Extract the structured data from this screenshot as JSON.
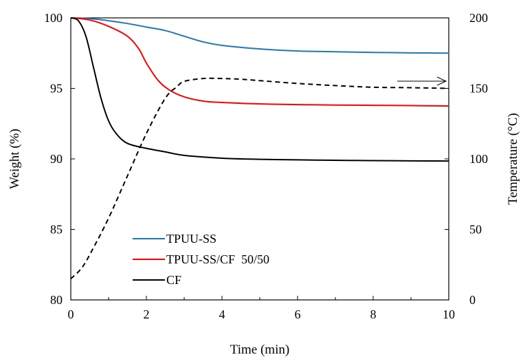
{
  "chart_data": {
    "type": "line",
    "title": "",
    "xlabel": "Time (min)",
    "ylabel": "Weight (%)",
    "y2label": "Temperature (°C)",
    "xlim": [
      0,
      10
    ],
    "ylim": [
      80,
      100
    ],
    "y2lim": [
      0,
      200
    ],
    "xticks": [
      "0",
      "2",
      "4",
      "6",
      "8",
      "10"
    ],
    "yticks": [
      "80",
      "85",
      "90",
      "95",
      "100"
    ],
    "y2ticks": [
      "0",
      "50",
      "100",
      "150",
      "200"
    ],
    "grid": false,
    "legend_position": "bottom-left",
    "series": [
      {
        "name": "TPUU-SS",
        "axis": "left",
        "color": "#1f77b4",
        "style": "solid",
        "x": [
          0,
          0.5,
          1,
          1.5,
          2,
          2.5,
          3,
          3.5,
          4,
          5,
          6,
          7,
          8,
          9,
          10
        ],
        "y": [
          100,
          99.95,
          99.8,
          99.6,
          99.35,
          99.1,
          98.7,
          98.3,
          98.05,
          97.8,
          97.65,
          97.6,
          97.55,
          97.52,
          97.5
        ]
      },
      {
        "name": "TPUU-SS/CF  50/50",
        "axis": "left",
        "color": "#ff0000",
        "style": "solid",
        "x": [
          0,
          0.5,
          1,
          1.5,
          1.8,
          2,
          2.3,
          2.6,
          3,
          3.5,
          4,
          5,
          6,
          7,
          8,
          9,
          10
        ],
        "y": [
          100,
          99.85,
          99.4,
          98.7,
          97.8,
          96.8,
          95.6,
          94.9,
          94.4,
          94.1,
          94.0,
          93.9,
          93.85,
          93.82,
          93.8,
          93.78,
          93.75
        ]
      },
      {
        "name": "CF",
        "axis": "left",
        "color": "#000000",
        "style": "solid",
        "x": [
          0,
          0.2,
          0.4,
          0.6,
          0.8,
          1,
          1.2,
          1.5,
          2,
          2.5,
          3,
          4,
          5,
          6,
          7,
          8,
          9,
          10
        ],
        "y": [
          100,
          99.8,
          98.7,
          96.5,
          94.3,
          92.7,
          91.8,
          91.1,
          90.75,
          90.5,
          90.25,
          90.05,
          89.97,
          89.93,
          89.9,
          89.88,
          89.86,
          89.85
        ]
      },
      {
        "name": "",
        "axis": "right",
        "color": "#000000",
        "style": "dashed",
        "x": [
          0,
          0.3,
          0.6,
          1,
          1.5,
          2,
          2.5,
          2.8,
          3,
          3.5,
          4,
          4.5,
          5,
          6,
          7,
          8,
          9,
          10
        ],
        "y": [
          15,
          23,
          37,
          58,
          88,
          118,
          143,
          151,
          155,
          157,
          157,
          156.5,
          155.5,
          153.5,
          152,
          150.8,
          150.5,
          150
        ]
      }
    ],
    "annotation": "arrow pointing right toward the Temperature axis"
  }
}
